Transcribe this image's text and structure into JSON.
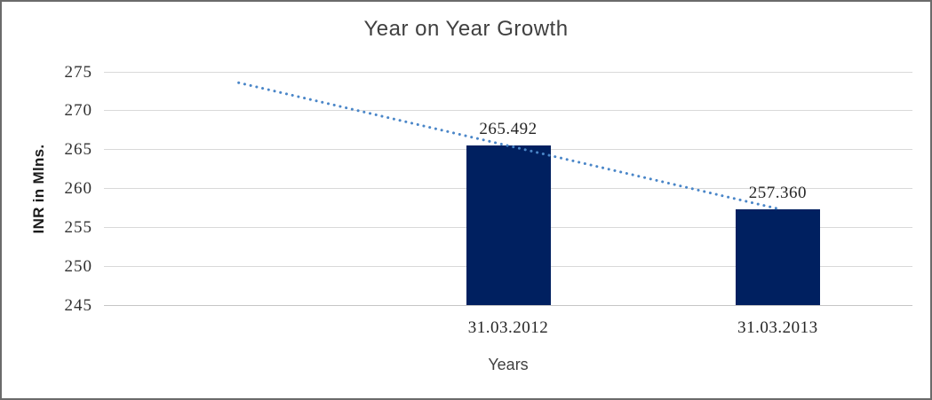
{
  "chart_data": {
    "type": "bar",
    "title": "Year on Year Growth",
    "xlabel": "Years",
    "ylabel": "INR in Mlns.",
    "categories": [
      "31.03.2012",
      "31.03.2013"
    ],
    "values": [
      265.492,
      257.36
    ],
    "data_labels": [
      "265.492",
      "257.360"
    ],
    "ylim": [
      245,
      275
    ],
    "ytick_step": 5,
    "yticks": [
      275,
      270,
      265,
      260,
      255,
      250,
      245
    ],
    "grid": true,
    "legend": false,
    "bar_color": "#002060",
    "trendline": {
      "style": "dotted",
      "color": "#4a86c8",
      "start_value": 273.6,
      "end_value": 257.4
    },
    "colors": {
      "gridline": "#d9d9d9",
      "title_text": "#404040",
      "label_text": "#262626"
    }
  }
}
